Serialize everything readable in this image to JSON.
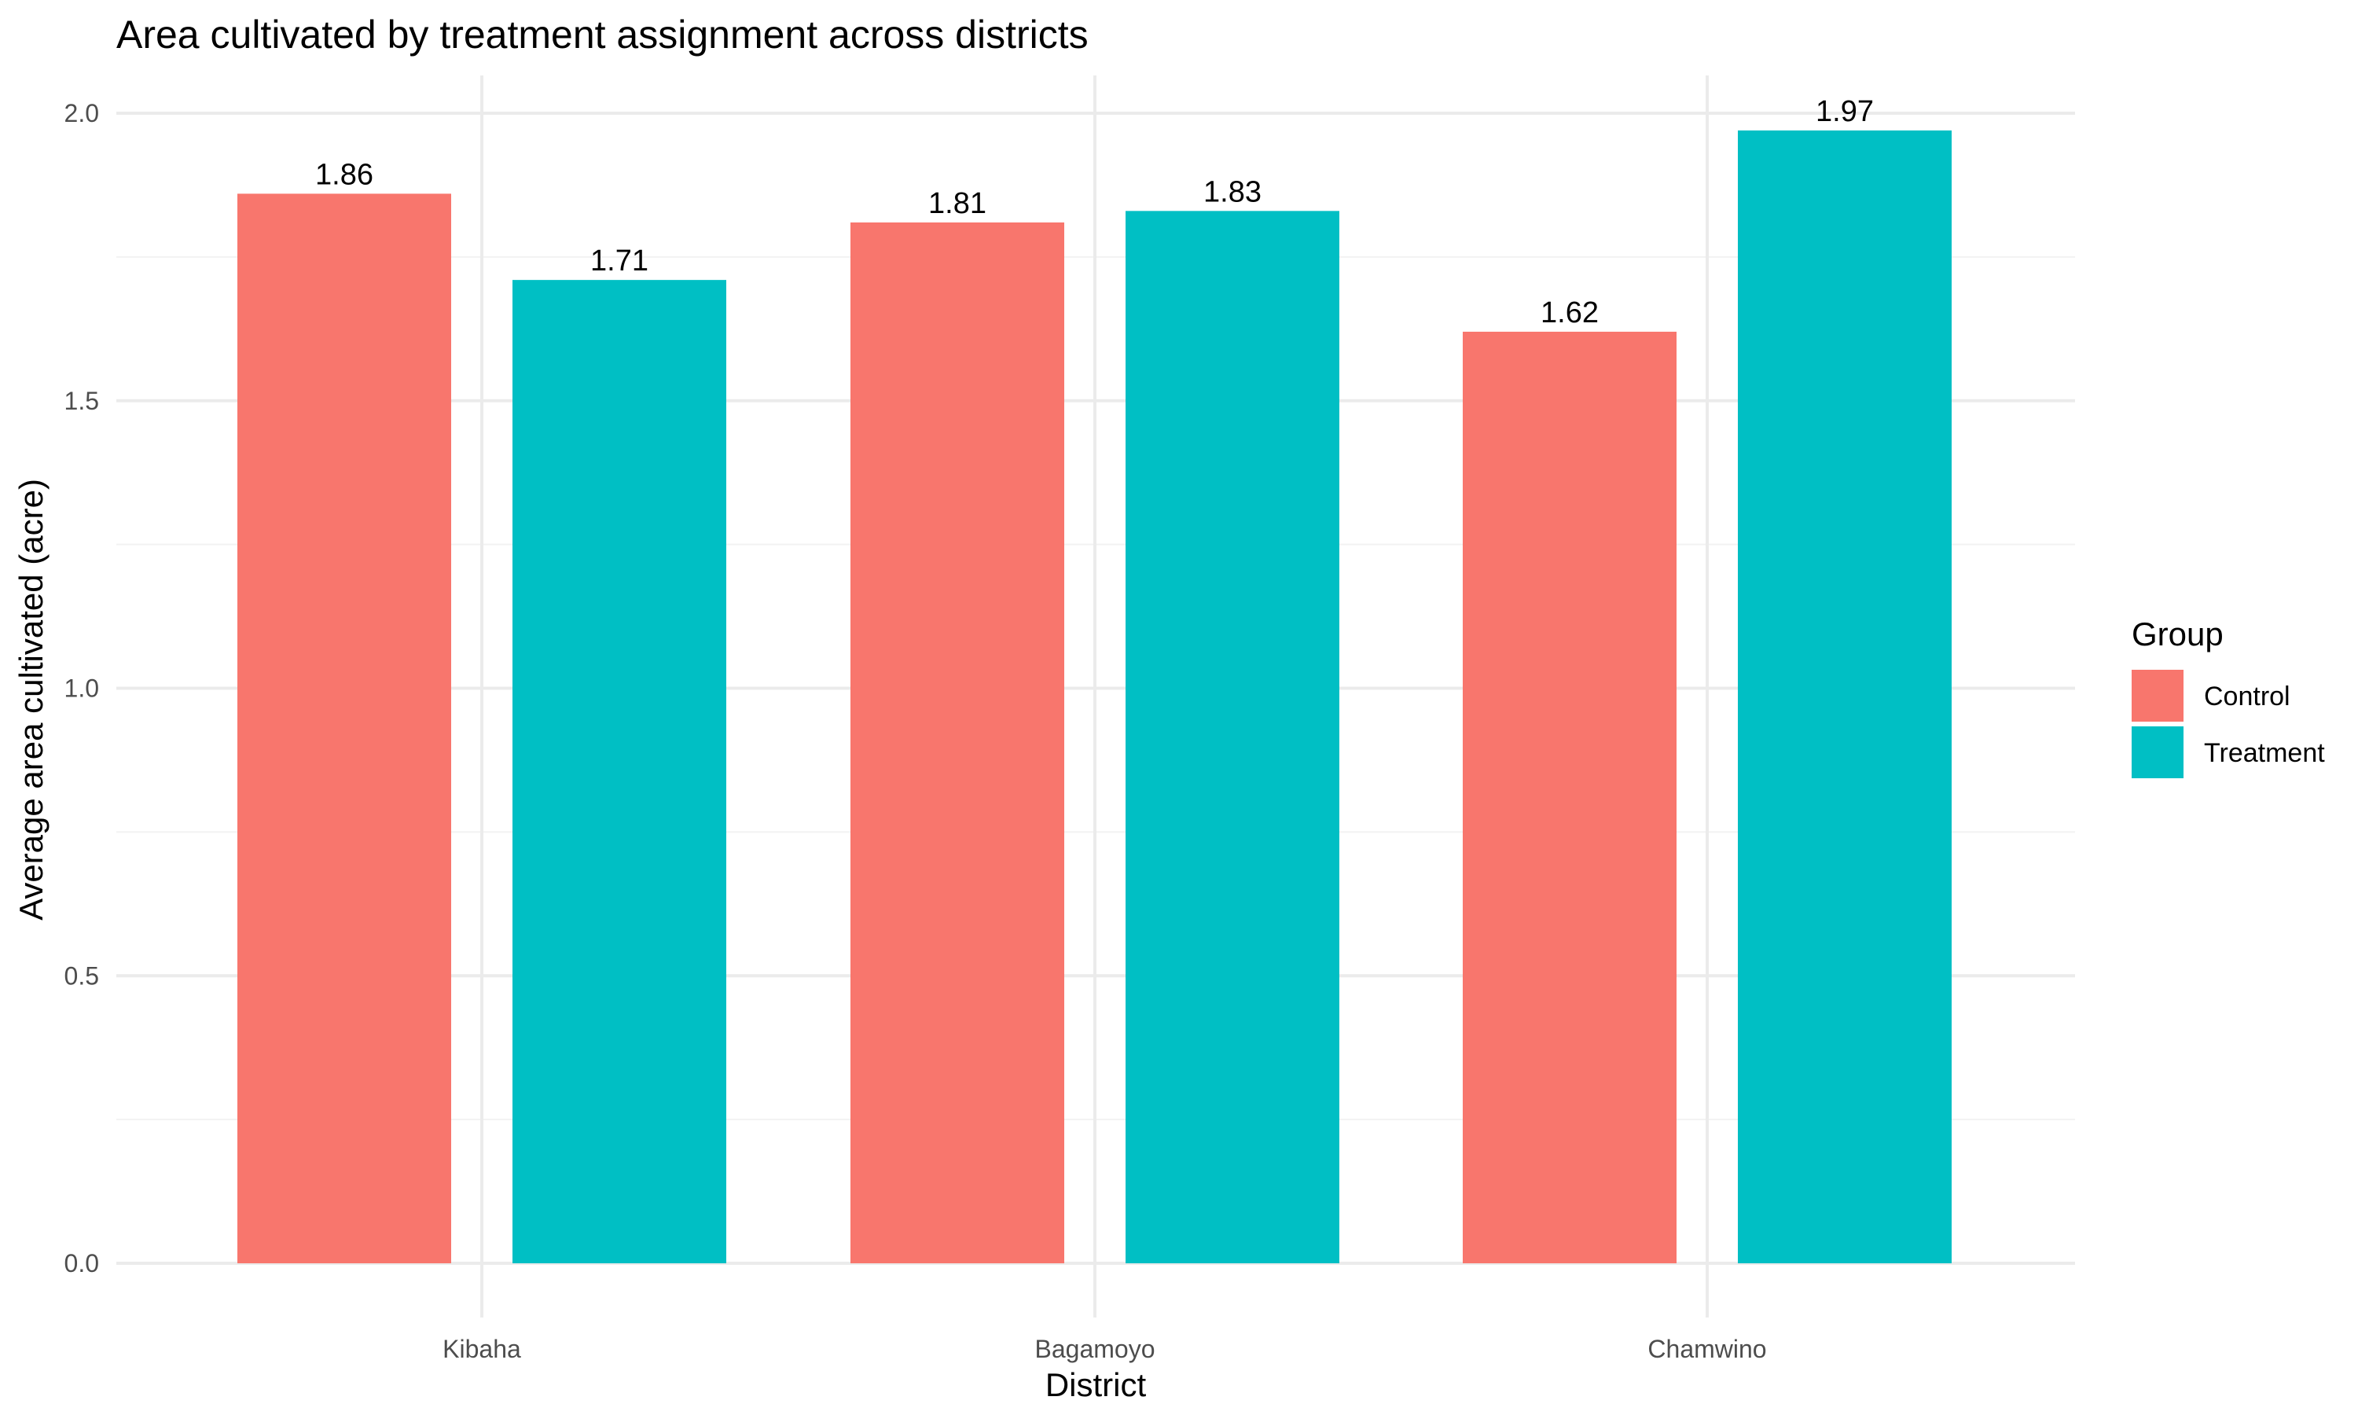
{
  "chart_data": {
    "type": "bar",
    "title": "Area cultivated by treatment assignment across districts",
    "xlabel": "District",
    "ylabel": "Average area cultivated (acre)",
    "categories": [
      "Kibaha",
      "Bagamoyo",
      "Chamwino"
    ],
    "series": [
      {
        "name": "Control",
        "color": "#F8766D",
        "values": [
          1.86,
          1.81,
          1.62
        ]
      },
      {
        "name": "Treatment",
        "color": "#00BFC4",
        "values": [
          1.71,
          1.83,
          1.97
        ]
      }
    ],
    "data_labels": [
      [
        "1.86",
        "1.81",
        "1.62"
      ],
      [
        "1.71",
        "1.83",
        "1.97"
      ]
    ],
    "ylim": [
      0,
      2.0
    ],
    "yticks": [
      0.0,
      0.5,
      1.0,
      1.5,
      2.0
    ],
    "ytick_labels": [
      "0.0",
      "0.5",
      "1.0",
      "1.5",
      "2.0"
    ],
    "grid": true,
    "legend": {
      "title": "Group",
      "position": "right"
    }
  }
}
